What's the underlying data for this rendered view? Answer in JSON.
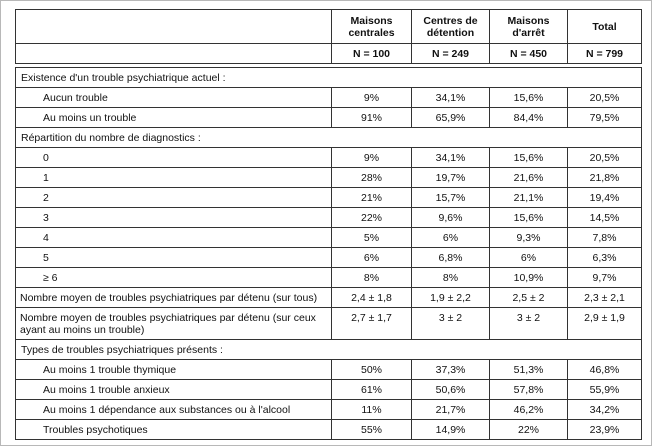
{
  "table": {
    "header": {
      "corner": "",
      "columns": [
        "Maisons centrales",
        "Centres de détention",
        "Maisons d'arrêt",
        "Total"
      ],
      "n_values": [
        "N = 100",
        "N = 249",
        "N = 450",
        "N = 799"
      ]
    },
    "rows": [
      {
        "type": "section",
        "label": "Existence d'un trouble psychiatrique actuel :"
      },
      {
        "type": "data",
        "indent": true,
        "label": "Aucun trouble",
        "values": [
          "9%",
          "34,1%",
          "15,6%",
          "20,5%"
        ]
      },
      {
        "type": "data",
        "indent": true,
        "label": "Au moins un trouble",
        "values": [
          "91%",
          "65,9%",
          "84,4%",
          "79,5%"
        ]
      },
      {
        "type": "section",
        "label": "Répartition du nombre de diagnostics :"
      },
      {
        "type": "data",
        "indent": true,
        "label": "0",
        "values": [
          "9%",
          "34,1%",
          "15,6%",
          "20,5%"
        ]
      },
      {
        "type": "data",
        "indent": true,
        "label": "1",
        "values": [
          "28%",
          "19,7%",
          "21,6%",
          "21,8%"
        ]
      },
      {
        "type": "data",
        "indent": true,
        "label": "2",
        "values": [
          "21%",
          "15,7%",
          "21,1%",
          "19,4%"
        ]
      },
      {
        "type": "data",
        "indent": true,
        "label": "3",
        "values": [
          "22%",
          "9,6%",
          "15,6%",
          "14,5%"
        ]
      },
      {
        "type": "data",
        "indent": true,
        "label": "4",
        "values": [
          "5%",
          "6%",
          "9,3%",
          "7,8%"
        ]
      },
      {
        "type": "data",
        "indent": true,
        "label": "5",
        "values": [
          "6%",
          "6,8%",
          "6%",
          "6,3%"
        ]
      },
      {
        "type": "data",
        "indent": true,
        "label": "≥ 6",
        "values": [
          "8%",
          "8%",
          "10,9%",
          "9,7%"
        ]
      },
      {
        "type": "data",
        "indent": false,
        "label": "Nombre moyen de troubles psychiatriques par détenu (sur tous)",
        "values": [
          "2,4 ± 1,8",
          "1,9 ± 2,2",
          "2,5 ± 2",
          "2,3 ± 2,1"
        ]
      },
      {
        "type": "data",
        "indent": false,
        "label": "Nombre moyen de troubles psychiatriques par détenu (sur ceux ayant au moins un trouble)",
        "values": [
          "2,7 ± 1,7",
          "3 ± 2",
          "3 ± 2",
          "2,9 ± 1,9"
        ]
      },
      {
        "type": "section",
        "label": "Types de troubles psychiatriques présents :"
      },
      {
        "type": "data",
        "indent": true,
        "label": "Au moins 1 trouble thymique",
        "values": [
          "50%",
          "37,3%",
          "51,3%",
          "46,8%"
        ]
      },
      {
        "type": "data",
        "indent": true,
        "label": "Au moins 1 trouble anxieux",
        "values": [
          "61%",
          "50,6%",
          "57,8%",
          "55,9%"
        ]
      },
      {
        "type": "data",
        "indent": true,
        "label": "Au moins 1 dépendance aux substances ou à l'alcool",
        "values": [
          "11%",
          "21,7%",
          "46,2%",
          "34,2%"
        ]
      },
      {
        "type": "data",
        "indent": true,
        "label": "Troubles psychotiques",
        "values": [
          "55%",
          "14,9%",
          "22%",
          "23,9%"
        ]
      }
    ]
  }
}
